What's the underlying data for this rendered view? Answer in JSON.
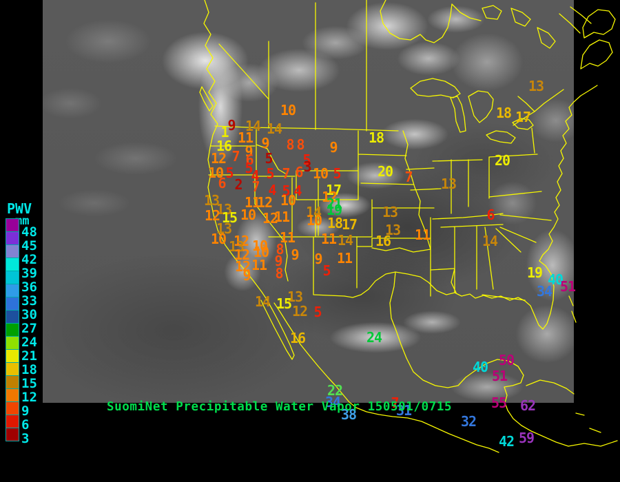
{
  "title": {
    "text": "SuomiNet Precipitable Water Vapor 150501/0715",
    "color": "#00dd4c"
  },
  "colors": {
    "background": "#000000",
    "map_outline": "#f8f800",
    "legend_text": "#00e8e8"
  },
  "legend": {
    "title": "PWV",
    "units": "mm",
    "bins": [
      {
        "label": "48",
        "color": "#990099"
      },
      {
        "label": "45",
        "color": "#7c2fd8"
      },
      {
        "label": "42",
        "color": "#8282d2"
      },
      {
        "label": "39",
        "color": "#00e8da"
      },
      {
        "label": "36",
        "color": "#00c4d6"
      },
      {
        "label": "33",
        "color": "#2f9ce8"
      },
      {
        "label": "30",
        "color": "#2e72da"
      },
      {
        "label": "27",
        "color": "#1d509e"
      },
      {
        "label": "24",
        "color": "#00a000"
      },
      {
        "label": "21",
        "color": "#8fe000"
      },
      {
        "label": "18",
        "color": "#e8e800"
      },
      {
        "label": "15",
        "color": "#e8c000"
      },
      {
        "label": "12",
        "color": "#c08000"
      },
      {
        "label": "9",
        "color": "#f07800"
      },
      {
        "label": "6",
        "color": "#f04600"
      },
      {
        "label": "3",
        "color": "#e01800"
      },
      {
        "label": "",
        "color": "#a00000"
      }
    ]
  },
  "station_palette": {
    "or": "#ff8400",
    "br": "#c8860a",
    "rd": "#ee2008",
    "dr": "#b40a00",
    "ro": "#f84e0c",
    "yl": "#ecec00",
    "gd": "#eab800",
    "gr": "#00c838",
    "lg": "#52e052",
    "cy": "#00d8d8",
    "lb": "#3f9fe8",
    "bl": "#3377dd",
    "mg": "#bb0077",
    "pu": "#9933bb"
  },
  "stations": [
    [
      "10",
      418,
      160,
      "or"
    ],
    [
      "9",
      336,
      182,
      "dr"
    ],
    [
      "14",
      367,
      183,
      "br"
    ],
    [
      "14",
      398,
      187,
      "br"
    ],
    [
      "1",
      326,
      192,
      "yl"
    ],
    [
      "11",
      356,
      200,
      "or"
    ],
    [
      "16",
      325,
      212,
      "yl"
    ],
    [
      "9",
      385,
      208,
      "or"
    ],
    [
      "8",
      421,
      210,
      "ro"
    ],
    [
      "8",
      436,
      210,
      "ro"
    ],
    [
      "9",
      484,
      214,
      "or"
    ],
    [
      "9",
      361,
      220,
      "or"
    ],
    [
      "12",
      317,
      230,
      "or"
    ],
    [
      "7",
      342,
      227,
      "ro"
    ],
    [
      "6",
      362,
      232,
      "ro"
    ],
    [
      "5",
      390,
      230,
      "dr"
    ],
    [
      "5",
      445,
      232,
      "rd"
    ],
    [
      "3",
      446,
      242,
      "dr"
    ],
    [
      "5",
      361,
      244,
      "rd"
    ],
    [
      "10",
      313,
      251,
      "or"
    ],
    [
      "5",
      333,
      251,
      "rd"
    ],
    [
      "4",
      370,
      255,
      "rd"
    ],
    [
      "5",
      392,
      252,
      "rd"
    ],
    [
      "7",
      415,
      252,
      "ro"
    ],
    [
      "6",
      434,
      250,
      "ro"
    ],
    [
      "10",
      465,
      252,
      "or"
    ],
    [
      "5",
      489,
      252,
      "rd"
    ],
    [
      "6",
      322,
      266,
      "ro"
    ],
    [
      "2",
      346,
      268,
      "dr"
    ],
    [
      "7",
      371,
      271,
      "ro"
    ],
    [
      "4",
      395,
      276,
      "rd"
    ],
    [
      "5",
      415,
      277,
      "rd"
    ],
    [
      "4",
      432,
      277,
      "rd"
    ],
    [
      "17",
      484,
      276,
      "yl"
    ],
    [
      "12",
      478,
      286,
      "or"
    ],
    [
      "21",
      485,
      296,
      "gr"
    ],
    [
      "19",
      485,
      305,
      "gr"
    ],
    [
      "18",
      486,
      324,
      "gd"
    ],
    [
      "17",
      507,
      326,
      "gd"
    ],
    [
      "14",
      455,
      308,
      "br"
    ],
    [
      "10",
      456,
      320,
      "or"
    ],
    [
      "13",
      307,
      291,
      "br"
    ],
    [
      "11",
      366,
      294,
      "or"
    ],
    [
      "12",
      384,
      294,
      "or"
    ],
    [
      "10",
      418,
      291,
      "or"
    ],
    [
      "13",
      325,
      304,
      "br"
    ],
    [
      "12",
      308,
      313,
      "or"
    ],
    [
      "15",
      333,
      316,
      "yl"
    ],
    [
      "10",
      360,
      312,
      "or"
    ],
    [
      "12",
      392,
      317,
      "or"
    ],
    [
      "11",
      409,
      315,
      "or"
    ],
    [
      "13",
      325,
      332,
      "br"
    ],
    [
      "10",
      317,
      347,
      "or"
    ],
    [
      "12",
      350,
      350,
      "or"
    ],
    [
      "13",
      343,
      358,
      "br"
    ],
    [
      "10",
      377,
      357,
      "or"
    ],
    [
      "11",
      417,
      345,
      "or"
    ],
    [
      "10",
      379,
      366,
      "or"
    ],
    [
      "8",
      406,
      362,
      "ro"
    ],
    [
      "9",
      428,
      370,
      "or"
    ],
    [
      "9",
      462,
      376,
      "or"
    ],
    [
      "12",
      351,
      370,
      "or"
    ],
    [
      "9",
      404,
      379,
      "ro"
    ],
    [
      "12",
      352,
      387,
      "or"
    ],
    [
      "11",
      376,
      385,
      "or"
    ],
    [
      "9",
      358,
      400,
      "or"
    ],
    [
      "8",
      405,
      397,
      "ro"
    ],
    [
      "11",
      500,
      375,
      "or"
    ],
    [
      "5",
      474,
      393,
      "rd"
    ],
    [
      "13",
      566,
      308,
      "br"
    ],
    [
      "13",
      570,
      334,
      "br"
    ],
    [
      "16",
      556,
      350,
      "gd"
    ],
    [
      "11",
      613,
      341,
      "or"
    ],
    [
      "11",
      477,
      347,
      "or"
    ],
    [
      "14",
      501,
      349,
      "br"
    ],
    [
      "18",
      546,
      200,
      "yl"
    ],
    [
      "20",
      559,
      249,
      "yl"
    ],
    [
      "7",
      593,
      257,
      "ro"
    ],
    [
      "13",
      651,
      267,
      "br"
    ],
    [
      "20",
      729,
      233,
      "yl"
    ],
    [
      "13",
      778,
      125,
      "br"
    ],
    [
      "18",
      731,
      164,
      "gd"
    ],
    [
      "17",
      759,
      170,
      "gd"
    ],
    [
      "14",
      711,
      350,
      "br"
    ],
    [
      "6",
      712,
      312,
      "rd"
    ],
    [
      "19",
      776,
      396,
      "yl"
    ],
    [
      "40",
      806,
      406,
      "cy"
    ],
    [
      "34",
      790,
      423,
      "bl"
    ],
    [
      "51",
      824,
      416,
      "mg"
    ],
    [
      "13",
      428,
      431,
      "br"
    ],
    [
      "15",
      412,
      441,
      "yl"
    ],
    [
      "14",
      381,
      438,
      "br"
    ],
    [
      "12",
      435,
      452,
      "br"
    ],
    [
      "5",
      461,
      453,
      "rd"
    ],
    [
      "16",
      432,
      491,
      "gd"
    ],
    [
      "24",
      543,
      490,
      "gr"
    ],
    [
      "22",
      486,
      567,
      "lg"
    ],
    [
      "34",
      483,
      584,
      "bl"
    ],
    [
      "38",
      506,
      602,
      "lb"
    ],
    [
      "31",
      586,
      596,
      "bl"
    ],
    [
      "32",
      680,
      612,
      "bl"
    ],
    [
      "7",
      573,
      585,
      "rd"
    ],
    [
      "40",
      697,
      533,
      "cy"
    ],
    [
      "50",
      735,
      523,
      "mg"
    ],
    [
      "51",
      725,
      546,
      "mg"
    ],
    [
      "55",
      724,
      585,
      "mg"
    ],
    [
      "62",
      766,
      589,
      "pu"
    ],
    [
      "42",
      735,
      641,
      "cy"
    ],
    [
      "59",
      764,
      636,
      "pu"
    ]
  ]
}
